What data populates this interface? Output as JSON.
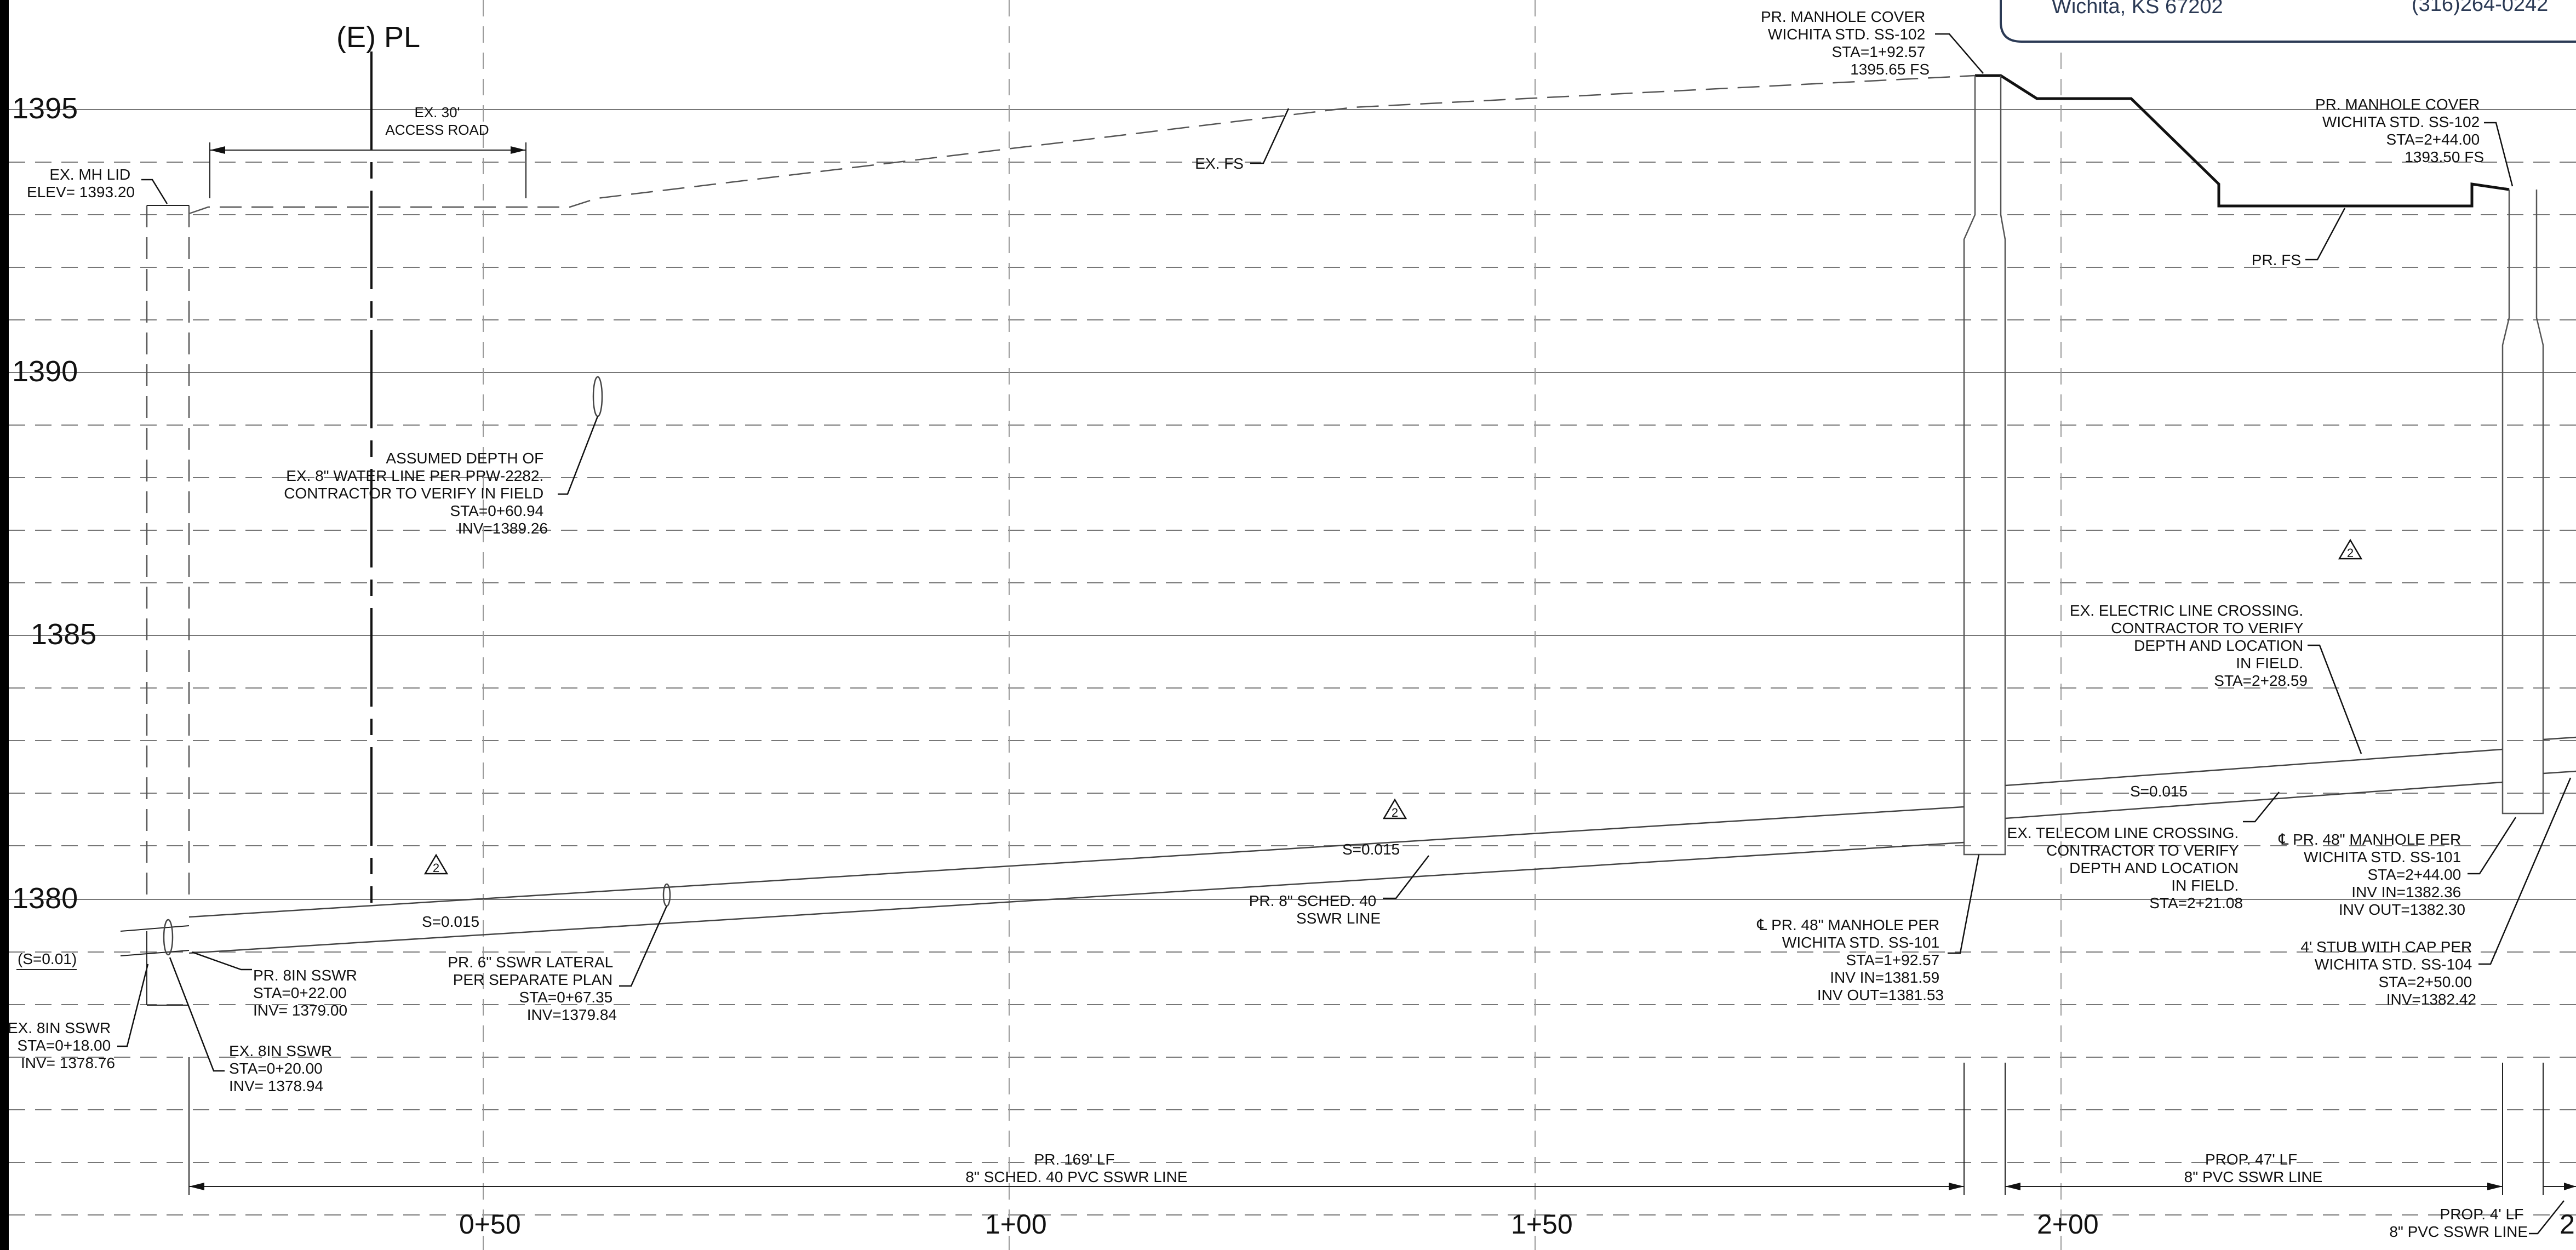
{
  "property_line": {
    "label": "(E) PL"
  },
  "elevations": [
    "1395",
    "1390",
    "1385",
    "1380"
  ],
  "stations": [
    "0+50",
    "1+00",
    "1+50",
    "2+00",
    "2"
  ],
  "title_block": {
    "city": "Wichita, KS 67202",
    "phone": "(316)264-0242"
  },
  "access_road": {
    "line1": "EX. 30'",
    "line2": "ACCESS ROAD"
  },
  "ex_mh_lid": {
    "line1": "EX. MH LID",
    "line2": "ELEV= 1393.20"
  },
  "ex_fs": "EX. FS",
  "pr_fs": "PR. FS",
  "mh_cover_1": {
    "line1": "PR. MANHOLE COVER",
    "line2": "WICHITA STD. SS-102",
    "line3": "STA=1+92.57",
    "line4": "1395.65 FS"
  },
  "mh_cover_2": {
    "line1": "PR. MANHOLE COVER",
    "line2": "WICHITA STD. SS-102",
    "line3": "STA=2+44.00",
    "line4": "1393.50 FS"
  },
  "water_line": {
    "line1": "ASSUMED DEPTH OF",
    "line2": "EX. 8\" WATER LINE PER PPW-2282.",
    "line3": "CONTRACTOR TO VERIFY IN FIELD",
    "line4": "STA=0+60.94",
    "line5": "INV=1389.26"
  },
  "electric": {
    "line1": "EX. ELECTRIC LINE CROSSING.",
    "line2": "CONTRACTOR TO VERIFY",
    "line3": "DEPTH AND LOCATION",
    "line4": "IN FIELD.",
    "line5": "STA=2+28.59"
  },
  "telecom": {
    "line1": "EX. TELECOM LINE CROSSING.",
    "line2": "CONTRACTOR TO VERIFY",
    "line3": "DEPTH AND LOCATION",
    "line4": "IN FIELD.",
    "line5": "STA=2+21.08"
  },
  "slopes": {
    "s1": "S=0.015",
    "s2": "S=0.015",
    "s3": "S=0.015",
    "s0": "(S=0.01)"
  },
  "revision_mark": "2",
  "sched40": {
    "line1": "PR. 8\" SCHED. 40",
    "line2": "SSWR LINE"
  },
  "lateral": {
    "line1": "PR. 6\" SSWR LATERAL",
    "line2": "PER SEPARATE PLAN",
    "line3": "STA=0+67.35",
    "line4": "INV=1379.84"
  },
  "pr_8in": {
    "line1": "PR. 8IN SSWR",
    "line2": "STA=0+22.00",
    "line3": "INV= 1379.00"
  },
  "ex_8in_a": {
    "line1": "EX. 8IN SSWR",
    "line2": "STA=0+18.00",
    "line3": "INV= 1378.76"
  },
  "ex_8in_b": {
    "line1": "EX. 8IN SSWR",
    "line2": "STA=0+20.00",
    "line3": "INV= 1378.94"
  },
  "mh48_1": {
    "line1": "℄ PR. 48\" MANHOLE PER",
    "line2": "WICHITA STD. SS-101",
    "line3": "STA=1+92.57",
    "line4": "INV IN=1381.59",
    "line5": "INV OUT=1381.53"
  },
  "mh48_2": {
    "line1": "℄ PR. 48\" MANHOLE PER",
    "line2": "WICHITA STD. SS-101",
    "line3": "STA=2+44.00",
    "line4": "INV IN=1382.36",
    "line5": "INV OUT=1382.30"
  },
  "stub": {
    "line1": "4' STUB WITH CAP PER",
    "line2": "WICHITA STD. SS-104",
    "line3": "STA=2+50.00",
    "line4": "INV=1382.42"
  },
  "dim_169": {
    "line1": "PR. 169' LF",
    "line2": "8\" SCHED. 40 PVC SSWR LINE"
  },
  "dim_47": {
    "line1": "PROP. 47' LF",
    "line2": "8\" PVC SSWR LINE"
  },
  "dim_4": {
    "line1": "PROP. 4' LF",
    "line2": "8\" PVC SSWR LINE"
  }
}
